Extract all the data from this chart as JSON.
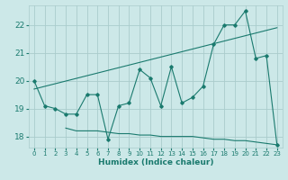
{
  "title": "",
  "xlabel": "Humidex (Indice chaleur)",
  "ylabel": "",
  "bg_color": "#cce8e8",
  "grid_color": "#aacccc",
  "line_color": "#1a7a6e",
  "xlim": [
    -0.5,
    23.5
  ],
  "ylim": [
    17.6,
    22.7
  ],
  "xticks": [
    0,
    1,
    2,
    3,
    4,
    5,
    6,
    7,
    8,
    9,
    10,
    11,
    12,
    13,
    14,
    15,
    16,
    17,
    18,
    19,
    20,
    21,
    22,
    23
  ],
  "yticks": [
    18,
    19,
    20,
    21,
    22
  ],
  "main_x": [
    0,
    1,
    2,
    3,
    4,
    5,
    6,
    7,
    8,
    9,
    10,
    11,
    12,
    13,
    14,
    15,
    16,
    17,
    18,
    19,
    20,
    21,
    22,
    23
  ],
  "main_y": [
    20.0,
    19.1,
    19.0,
    18.8,
    18.8,
    19.5,
    19.5,
    17.9,
    19.1,
    19.2,
    20.4,
    20.1,
    19.1,
    20.5,
    19.2,
    19.4,
    19.8,
    21.3,
    22.0,
    22.0,
    22.5,
    20.8,
    20.9,
    17.7
  ],
  "trend_x": [
    0,
    23
  ],
  "trend_y": [
    19.7,
    21.9
  ],
  "flat_x": [
    3,
    4,
    5,
    6,
    7,
    8,
    9,
    10,
    11,
    12,
    13,
    14,
    15,
    16,
    17,
    18,
    19,
    20,
    21,
    22,
    23
  ],
  "flat_y": [
    18.3,
    18.2,
    18.2,
    18.2,
    18.15,
    18.1,
    18.1,
    18.05,
    18.05,
    18.0,
    18.0,
    18.0,
    18.0,
    17.95,
    17.9,
    17.9,
    17.85,
    17.85,
    17.8,
    17.75,
    17.7
  ]
}
